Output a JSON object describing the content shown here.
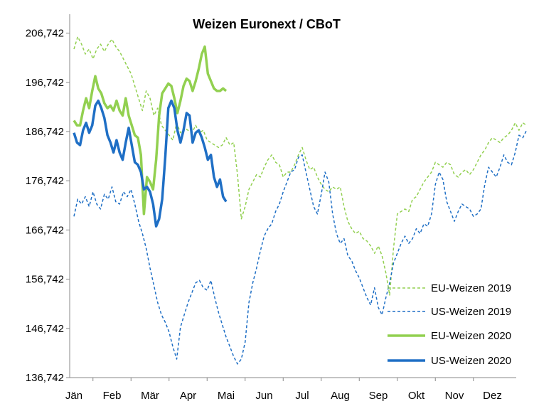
{
  "chart_data": {
    "type": "line",
    "title": "Weizen Euronext / CBoT",
    "xlabel": "",
    "ylabel": "",
    "ylim": [
      136.742,
      211.742
    ],
    "y_ticks": [
      136.742,
      146.742,
      156.742,
      166.742,
      176.742,
      186.742,
      196.742,
      206.742
    ],
    "y_tick_labels": [
      "136,742",
      "146,742",
      "156,742",
      "166,742",
      "176,742",
      "186,742",
      "196,742",
      "206,742"
    ],
    "x_categories": [
      "Jän",
      "Feb",
      "Mär",
      "Apr",
      "Mai",
      "Jun",
      "Jul",
      "Aug",
      "Sep",
      "Okt",
      "Nov",
      "Dez"
    ],
    "legend_position": "bottom-right",
    "grid": false,
    "colors": {
      "eu": "#92d050",
      "us": "#1f6fc5"
    },
    "series": [
      {
        "name": "EU-Weizen 2019",
        "style": "dashed",
        "color": "#92d050",
        "x": [
          0,
          0.1,
          0.2,
          0.3,
          0.4,
          0.5,
          0.6,
          0.7,
          0.8,
          0.9,
          1.0,
          1.1,
          1.2,
          1.3,
          1.4,
          1.5,
          1.6,
          1.7,
          1.8,
          1.9,
          2.0,
          2.1,
          2.2,
          2.3,
          2.4,
          2.5,
          2.6,
          2.7,
          2.8,
          2.9,
          3.0,
          3.1,
          3.2,
          3.3,
          3.4,
          3.5,
          3.6,
          3.7,
          3.8,
          3.9,
          4.0,
          4.1,
          4.2,
          4.3,
          4.4,
          4.5,
          4.6,
          4.7,
          4.8,
          4.9,
          5.0,
          5.1,
          5.2,
          5.3,
          5.4,
          5.5,
          5.6,
          5.7,
          5.8,
          5.9,
          6.0,
          6.1,
          6.2,
          6.3,
          6.4,
          6.5,
          6.6,
          6.7,
          6.8,
          6.9,
          7.0,
          7.1,
          7.2,
          7.3,
          7.4,
          7.5,
          7.6,
          7.7,
          7.8,
          7.9,
          8.0,
          8.1,
          8.2,
          8.3,
          8.4,
          8.5,
          8.6,
          8.7,
          8.8,
          8.9,
          9.0,
          9.1,
          9.2,
          9.3,
          9.4,
          9.5,
          9.6,
          9.7,
          9.8,
          9.9,
          10.0,
          10.1,
          10.2,
          10.3,
          10.4,
          10.5,
          10.6,
          10.7,
          10.8,
          10.9,
          11.0,
          11.1,
          11.2,
          11.3,
          11.4,
          11.5,
          11.6,
          11.7,
          11.8,
          11.9
        ],
        "values": [
          203.5,
          206.0,
          204.5,
          202.5,
          203.5,
          201.5,
          203.5,
          204.5,
          203.0,
          204.5,
          205.5,
          204.0,
          203.0,
          201.5,
          200.0,
          198.5,
          196.0,
          193.5,
          191.0,
          195.0,
          193.5,
          190.0,
          191.5,
          188.0,
          187.0,
          186.0,
          185.0,
          188.5,
          186.5,
          187.5,
          187.0,
          186.5,
          188.0,
          186.5,
          187.0,
          185.0,
          184.5,
          184.0,
          183.5,
          184.0,
          185.5,
          184.0,
          184.5,
          178.0,
          169.0,
          171.5,
          175.0,
          176.5,
          178.0,
          177.5,
          179.5,
          181.0,
          182.0,
          180.5,
          180.0,
          177.5,
          178.5,
          178.5,
          180.0,
          182.0,
          183.5,
          181.0,
          179.0,
          179.5,
          177.5,
          176.0,
          175.0,
          174.5,
          175.5,
          175.0,
          175.5,
          171.5,
          168.5,
          167.0,
          166.0,
          166.5,
          165.0,
          164.5,
          163.5,
          162.0,
          163.5,
          161.5,
          158.0,
          153.5,
          163.0,
          170.0,
          170.5,
          171.0,
          170.5,
          173.0,
          173.5,
          175.0,
          176.5,
          177.5,
          178.5,
          180.5,
          180.0,
          179.5,
          180.5,
          180.0,
          178.0,
          177.5,
          178.5,
          179.0,
          178.0,
          179.0,
          180.5,
          182.0,
          183.0,
          184.5,
          185.5,
          185.0,
          184.5,
          185.5,
          186.0,
          187.0,
          188.5,
          187.0,
          188.5,
          188.0
        ]
      },
      {
        "name": "US-Weizen 2019",
        "style": "dashed",
        "color": "#1f6fc5",
        "x": [
          0,
          0.1,
          0.2,
          0.3,
          0.4,
          0.5,
          0.6,
          0.7,
          0.8,
          0.9,
          1.0,
          1.1,
          1.2,
          1.3,
          1.4,
          1.5,
          1.6,
          1.7,
          1.8,
          1.9,
          2.0,
          2.1,
          2.2,
          2.3,
          2.4,
          2.5,
          2.6,
          2.7,
          2.8,
          2.9,
          3.0,
          3.1,
          3.2,
          3.3,
          3.4,
          3.5,
          3.6,
          3.7,
          3.8,
          3.9,
          4.0,
          4.1,
          4.2,
          4.3,
          4.4,
          4.5,
          4.6,
          4.7,
          4.8,
          4.9,
          5.0,
          5.1,
          5.2,
          5.3,
          5.4,
          5.5,
          5.6,
          5.7,
          5.8,
          5.9,
          6.0,
          6.1,
          6.2,
          6.3,
          6.4,
          6.5,
          6.6,
          6.7,
          6.8,
          6.9,
          7.0,
          7.1,
          7.2,
          7.3,
          7.4,
          7.5,
          7.6,
          7.7,
          7.8,
          7.9,
          8.0,
          8.1,
          8.2,
          8.3,
          8.4,
          8.5,
          8.6,
          8.7,
          8.8,
          8.9,
          9.0,
          9.1,
          9.2,
          9.3,
          9.4,
          9.5,
          9.6,
          9.7,
          9.8,
          9.9,
          10.0,
          10.1,
          10.2,
          10.3,
          10.4,
          10.5,
          10.6,
          10.7,
          10.8,
          10.9,
          11.0,
          11.1,
          11.2,
          11.3,
          11.4,
          11.5,
          11.6,
          11.7,
          11.8,
          11.9
        ],
        "values": [
          169.5,
          173.0,
          172.0,
          173.5,
          171.5,
          174.5,
          172.0,
          171.0,
          174.0,
          173.0,
          175.5,
          172.5,
          172.0,
          174.5,
          173.5,
          175.0,
          172.0,
          168.5,
          166.0,
          163.0,
          159.0,
          155.5,
          152.0,
          149.5,
          148.0,
          146.0,
          143.0,
          140.5,
          147.0,
          149.5,
          152.0,
          154.0,
          156.0,
          156.5,
          155.0,
          154.5,
          156.5,
          153.0,
          150.0,
          147.5,
          145.0,
          143.0,
          141.0,
          139.5,
          140.5,
          144.0,
          152.0,
          156.0,
          159.0,
          162.5,
          165.5,
          167.0,
          168.0,
          170.5,
          172.0,
          174.5,
          176.5,
          178.5,
          179.0,
          181.5,
          182.0,
          178.5,
          175.0,
          171.5,
          170.0,
          174.0,
          178.5,
          176.5,
          170.0,
          166.0,
          164.0,
          165.0,
          161.5,
          160.5,
          158.5,
          157.0,
          155.0,
          153.0,
          151.5,
          155.0,
          151.0,
          149.5,
          153.0,
          156.0,
          160.0,
          162.0,
          164.0,
          165.5,
          164.0,
          165.0,
          167.0,
          166.0,
          168.0,
          167.5,
          170.0,
          176.0,
          178.5,
          177.0,
          172.5,
          170.5,
          168.5,
          170.5,
          172.0,
          171.5,
          171.0,
          169.5,
          170.0,
          171.0,
          176.0,
          179.5,
          178.5,
          177.5,
          179.5,
          182.0,
          180.5,
          180.0,
          182.5,
          186.0,
          185.5,
          187.0
        ]
      },
      {
        "name": "EU-Weizen 2020",
        "style": "solid",
        "color": "#92d050",
        "x": [
          0,
          0.08,
          0.16,
          0.24,
          0.32,
          0.4,
          0.48,
          0.56,
          0.64,
          0.72,
          0.8,
          0.88,
          0.96,
          1.04,
          1.12,
          1.2,
          1.28,
          1.36,
          1.44,
          1.52,
          1.6,
          1.68,
          1.76,
          1.84,
          1.92,
          2.0,
          2.08,
          2.16,
          2.24,
          2.32,
          2.4,
          2.48,
          2.56,
          2.64,
          2.72,
          2.8,
          2.88,
          2.96,
          3.04,
          3.12,
          3.2,
          3.28,
          3.36,
          3.44,
          3.52,
          3.6,
          3.68,
          3.76,
          3.84,
          3.92,
          4.0
        ],
        "values": [
          189.0,
          188.0,
          188.0,
          191.0,
          193.5,
          191.5,
          195.0,
          198.0,
          195.5,
          194.5,
          192.5,
          191.5,
          192.0,
          191.0,
          193.0,
          191.0,
          190.0,
          193.5,
          190.0,
          188.0,
          186.0,
          185.5,
          182.0,
          170.0,
          177.5,
          176.5,
          175.0,
          181.0,
          190.0,
          194.5,
          195.5,
          196.5,
          196.0,
          193.5,
          190.5,
          193.0,
          196.0,
          197.5,
          197.0,
          195.0,
          197.0,
          199.5,
          202.5,
          204.0,
          198.5,
          197.0,
          195.5,
          195.0,
          195.0,
          195.5,
          195.0
        ]
      },
      {
        "name": "US-Weizen 2020",
        "style": "solid",
        "color": "#1f6fc5",
        "x": [
          0,
          0.08,
          0.16,
          0.24,
          0.32,
          0.4,
          0.48,
          0.56,
          0.64,
          0.72,
          0.8,
          0.88,
          0.96,
          1.04,
          1.12,
          1.2,
          1.28,
          1.36,
          1.44,
          1.52,
          1.6,
          1.68,
          1.76,
          1.84,
          1.92,
          2.0,
          2.08,
          2.16,
          2.24,
          2.32,
          2.4,
          2.48,
          2.56,
          2.64,
          2.72,
          2.8,
          2.88,
          2.96,
          3.04,
          3.12,
          3.2,
          3.28,
          3.36,
          3.44,
          3.52,
          3.6,
          3.68,
          3.76,
          3.84,
          3.92,
          4.0
        ],
        "values": [
          186.5,
          184.5,
          184.0,
          187.0,
          188.5,
          186.5,
          188.0,
          192.0,
          193.0,
          191.5,
          189.5,
          186.0,
          184.5,
          182.5,
          185.0,
          182.5,
          181.0,
          184.5,
          187.5,
          184.0,
          180.5,
          180.0,
          178.5,
          175.0,
          175.5,
          174.5,
          172.0,
          167.5,
          169.0,
          173.0,
          181.5,
          191.5,
          193.0,
          191.5,
          187.0,
          184.5,
          187.0,
          190.5,
          190.0,
          184.5,
          186.5,
          187.0,
          185.5,
          183.5,
          181.0,
          182.0,
          177.5,
          175.5,
          177.0,
          173.5,
          172.5
        ]
      }
    ]
  }
}
